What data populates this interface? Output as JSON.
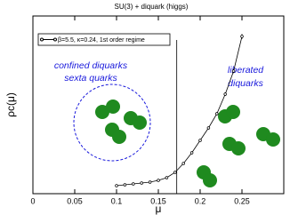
{
  "chart_data": {
    "type": "line",
    "title": "SU(3) + diquark (higgs)",
    "x_label": "μ",
    "y_label": "ρc(μ)",
    "legend_label": "β=5.5, κ=0.24,  1st order regime",
    "annotations": [
      "confined diquarks",
      "sexta quarks",
      "liberated",
      "diquarks"
    ],
    "x": [
      0.1,
      0.11,
      0.12,
      0.13,
      0.14,
      0.15,
      0.16,
      0.17,
      0.18,
      0.19,
      0.2,
      0.21,
      0.22,
      0.23,
      0.24,
      0.25
    ],
    "values": [
      0.045,
      0.05,
      0.055,
      0.06,
      0.065,
      0.075,
      0.09,
      0.12,
      0.17,
      0.23,
      0.3,
      0.37,
      0.45,
      0.56,
      0.69,
      0.885
    ],
    "errors": [
      0.004,
      0.004,
      0.004,
      0.004,
      0.004,
      0.005,
      0.005,
      0.006,
      0.006,
      0.007,
      0.008,
      0.008,
      0.009,
      0.01,
      0.012,
      0.014
    ],
    "color": "#000000",
    "transition_x": 0.172,
    "xlim": [
      0,
      0.3
    ],
    "ylim": [
      0,
      1
    ],
    "xticks": [
      0,
      0.05,
      0.1,
      0.15,
      0.2,
      0.25
    ]
  }
}
